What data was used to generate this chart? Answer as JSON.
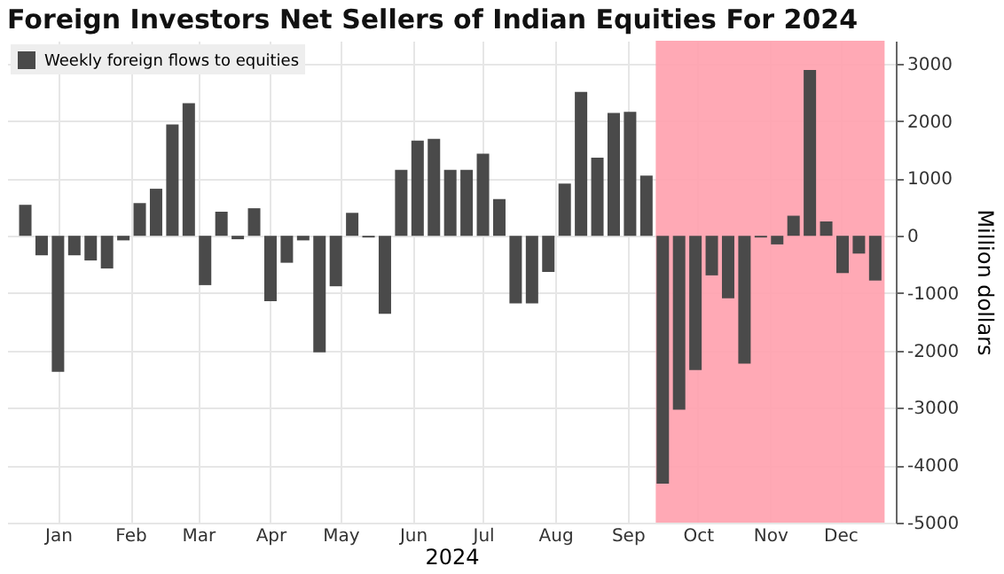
{
  "chart_data": {
    "type": "bar",
    "title": "Foreign Investors Net Sellers of Indian Equities For 2024",
    "xlabel": "2024",
    "ylabel": "Million dollars",
    "x": [
      "2024-01-01",
      "2024-01-08",
      "2024-01-15",
      "2024-01-22",
      "2024-01-29",
      "2024-02-05",
      "2024-02-12",
      "2024-02-19",
      "2024-02-26",
      "2024-03-04",
      "2024-03-11",
      "2024-03-18",
      "2024-03-25",
      "2024-04-01",
      "2024-04-08",
      "2024-04-15",
      "2024-04-22",
      "2024-04-29",
      "2024-05-06",
      "2024-05-13",
      "2024-05-20",
      "2024-05-27",
      "2024-06-03",
      "2024-06-10",
      "2024-06-17",
      "2024-06-24",
      "2024-07-01",
      "2024-07-08",
      "2024-07-15",
      "2024-07-22",
      "2024-07-29",
      "2024-08-05",
      "2024-08-12",
      "2024-08-19",
      "2024-08-26",
      "2024-09-02",
      "2024-09-09",
      "2024-09-16",
      "2024-09-23",
      "2024-09-30",
      "2024-10-07",
      "2024-10-14",
      "2024-10-21",
      "2024-10-28",
      "2024-11-04",
      "2024-11-11",
      "2024-11-18",
      "2024-11-25",
      "2024-12-02",
      "2024-12-09",
      "2024-12-16",
      "2024-12-23",
      "2024-12-30"
    ],
    "series": [
      {
        "name": "Weekly foreign flows to equities",
        "color": "#4a4a4a",
        "values": [
          540,
          -340,
          -2370,
          -340,
          -430,
          -570,
          -80,
          570,
          820,
          1940,
          2310,
          -860,
          420,
          -60,
          480,
          -1140,
          -470,
          -80,
          -2030,
          -880,
          400,
          -30,
          -1360,
          1150,
          1660,
          1690,
          1150,
          1150,
          1430,
          640,
          -1180,
          -1180,
          -630,
          910,
          2510,
          1360,
          2140,
          2160,
          1050,
          -4320,
          -3030,
          -2340,
          -690,
          -1090,
          -2230,
          -30,
          -150,
          350,
          2890,
          250,
          -650,
          -310,
          -780
        ]
      }
    ],
    "xlim": [
      "2023-12-28",
      "2025-01-04"
    ],
    "xticks": [
      {
        "value": "2024-01-15",
        "label": "Jan"
      },
      {
        "value": "2024-02-15",
        "label": "Feb"
      },
      {
        "value": "2024-03-15",
        "label": "Mar"
      },
      {
        "value": "2024-04-15",
        "label": "Apr"
      },
      {
        "value": "2024-05-15",
        "label": "May"
      },
      {
        "value": "2024-06-15",
        "label": "Jun"
      },
      {
        "value": "2024-07-15",
        "label": "Jul"
      },
      {
        "value": "2024-08-15",
        "label": "Aug"
      },
      {
        "value": "2024-09-15",
        "label": "Sep"
      },
      {
        "value": "2024-10-15",
        "label": "Oct"
      },
      {
        "value": "2024-11-15",
        "label": "Nov"
      },
      {
        "value": "2024-12-15",
        "label": "Dec"
      }
    ],
    "ylim": [
      -5000,
      3400
    ],
    "yticks": [
      -5000,
      -4000,
      -3000,
      -2000,
      -1000,
      0,
      1000,
      2000,
      3000
    ],
    "bands": [
      {
        "axis": "x",
        "from": "2024-09-27",
        "to": "2025-01-03",
        "color": "#ffa0ad"
      }
    ],
    "grid": true,
    "legend": "top left"
  }
}
